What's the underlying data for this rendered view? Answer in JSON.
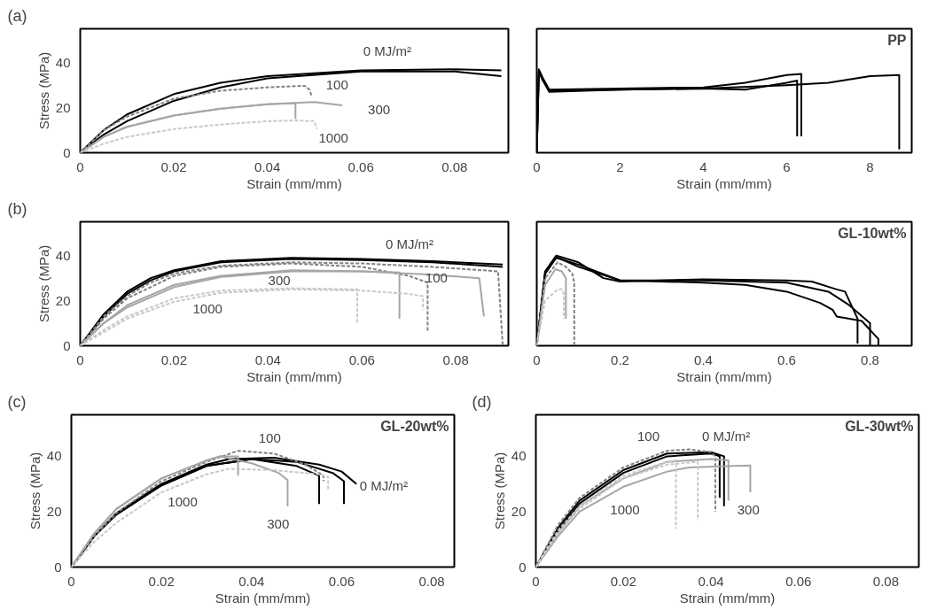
{
  "chart_data": [
    {
      "type": "line",
      "xlabel": "Strain (mm/mm)",
      "ylabel": "Stress (MPa)",
      "xlim": [
        0,
        0.0915
      ],
      "ylim": [
        0,
        55
      ],
      "xticks": [
        0,
        0.02,
        0.04,
        0.06,
        0.08
      ],
      "yticks": [
        0,
        20,
        40
      ],
      "grid": false,
      "marker": "none",
      "annotations": [
        "(a)",
        "0 MJ/m²",
        "100",
        "300",
        "1000"
      ],
      "series": [
        {
          "color": "#000000",
          "x": [
            0,
            0.005,
            0.01,
            0.02,
            0.03,
            0.04,
            0.06,
            0.08,
            0.09
          ],
          "values": [
            0,
            10,
            17,
            26,
            31,
            34,
            36.5,
            37,
            36.5
          ]
        },
        {
          "color": "#000000",
          "x": [
            0,
            0.005,
            0.01,
            0.02,
            0.03,
            0.04,
            0.06,
            0.08,
            0.09
          ],
          "values": [
            0,
            8,
            14,
            23,
            29,
            33,
            36,
            36,
            34
          ]
        },
        {
          "color": "#808080",
          "line_style": "dashed",
          "x": [
            0,
            0.005,
            0.01,
            0.02,
            0.03,
            0.04,
            0.048,
            0.049,
            0.0494
          ],
          "values": [
            0,
            10,
            16,
            24,
            27.5,
            29,
            29.7,
            28,
            25.5
          ]
        },
        {
          "color": "#a6a6a6",
          "x": [
            0,
            0.005,
            0.01,
            0.02,
            0.03,
            0.04,
            0.05,
            0.056
          ],
          "values": [
            0,
            7,
            11.5,
            16.5,
            19.5,
            21.5,
            22.5,
            21
          ]
        },
        {
          "color": "#a6a6a6",
          "x": [
            0,
            0.005,
            0.01,
            0.02,
            0.03,
            0.04,
            0.046,
            0.046
          ],
          "values": [
            0,
            7,
            11.5,
            16.5,
            19.5,
            21.5,
            22,
            15
          ]
        },
        {
          "color": "#c8c8c8",
          "line_style": "dashed",
          "x": [
            0,
            0.005,
            0.01,
            0.02,
            0.03,
            0.04,
            0.046,
            0.05,
            0.0506
          ],
          "values": [
            0,
            4,
            7,
            10.5,
            12.5,
            14,
            14.3,
            14,
            10.5
          ]
        }
      ]
    },
    {
      "type": "line",
      "title": "PP",
      "xlabel": "Strain (mm/mm)",
      "xlim": [
        0,
        9
      ],
      "ylim": [
        0,
        55
      ],
      "xticks": [
        0,
        2,
        4,
        6,
        8
      ],
      "tick_labels": "x",
      "grid": false,
      "marker": "none",
      "series": [
        {
          "color": "#000000",
          "x": [
            0,
            0.05,
            0.15,
            0.3,
            2,
            4,
            5,
            6,
            6.35,
            6.35
          ],
          "values": [
            0,
            37,
            33,
            28,
            28.5,
            29,
            31,
            34.5,
            35,
            7.3
          ]
        },
        {
          "color": "#000000",
          "x": [
            0,
            0.05,
            0.15,
            0.3,
            2,
            4,
            5,
            6,
            6.25,
            6.25
          ],
          "values": [
            0,
            36,
            32,
            27,
            28,
            28.5,
            28,
            31,
            32,
            7.3
          ]
        },
        {
          "color": "#000000",
          "x": [
            0,
            0.05,
            0.15,
            0.3,
            2,
            4,
            6,
            7,
            8,
            8.7,
            8.7
          ],
          "values": [
            0,
            36,
            32,
            27.5,
            28,
            28.5,
            30,
            31,
            34,
            34.5,
            1.5
          ]
        }
      ]
    },
    {
      "type": "line",
      "xlabel": "Strain (mm/mm)",
      "ylabel": "Stress (MPa)",
      "xlim": [
        0,
        0.0912
      ],
      "ylim": [
        0,
        55
      ],
      "xticks": [
        0,
        0.02,
        0.04,
        0.06,
        0.08
      ],
      "yticks": [
        0,
        20,
        40
      ],
      "grid": false,
      "marker": "none",
      "annotations": [
        "(b)",
        "0 MJ/m²",
        "300",
        "1000",
        "100"
      ],
      "series": [
        {
          "color": "#000000",
          "x": [
            0,
            0.005,
            0.01,
            0.015,
            0.02,
            0.03,
            0.045,
            0.06,
            0.075,
            0.09
          ],
          "values": [
            0,
            14,
            24,
            30,
            33.5,
            37.5,
            39,
            38.5,
            37.5,
            36
          ]
        },
        {
          "color": "#000000",
          "x": [
            0,
            0.005,
            0.01,
            0.015,
            0.02,
            0.03,
            0.045,
            0.06,
            0.075,
            0.09
          ],
          "values": [
            0,
            13,
            23,
            29,
            33,
            37,
            38.5,
            38,
            37,
            35
          ]
        },
        {
          "color": "#808080",
          "line_style": "dashed",
          "x": [
            0,
            0.005,
            0.01,
            0.015,
            0.02,
            0.03,
            0.045,
            0.06,
            0.075,
            0.089,
            0.09
          ],
          "values": [
            0,
            13,
            22,
            28,
            32,
            35.5,
            37,
            36.5,
            35,
            33,
            0
          ]
        },
        {
          "color": "#808080",
          "line_style": "dashed",
          "x": [
            0,
            0.005,
            0.01,
            0.02,
            0.03,
            0.045,
            0.06,
            0.07,
            0.074,
            0.074
          ],
          "values": [
            0,
            12,
            21,
            31,
            35,
            36.5,
            35,
            31,
            28,
            6
          ]
        },
        {
          "color": "#a6a6a6",
          "x": [
            0,
            0.005,
            0.01,
            0.02,
            0.03,
            0.045,
            0.06,
            0.068,
            0.068
          ],
          "values": [
            0,
            10,
            18,
            27,
            31,
            33.5,
            33,
            32.5,
            12
          ]
        },
        {
          "color": "#a6a6a6",
          "x": [
            0,
            0.005,
            0.01,
            0.02,
            0.03,
            0.045,
            0.06,
            0.075,
            0.085,
            0.086
          ],
          "values": [
            0,
            10,
            17,
            26,
            30.5,
            33,
            33,
            31.5,
            30,
            13
          ]
        },
        {
          "color": "#c8c8c8",
          "line_style": "dashed",
          "x": [
            0,
            0.005,
            0.01,
            0.02,
            0.03,
            0.045,
            0.059,
            0.059
          ],
          "values": [
            0,
            7,
            13,
            21,
            24.5,
            25.5,
            25,
            10
          ]
        },
        {
          "color": "#c8c8c8",
          "line_style": "dashed",
          "x": [
            0,
            0.005,
            0.01,
            0.02,
            0.03,
            0.045,
            0.06,
            0.07,
            0.073,
            0.073
          ],
          "values": [
            0,
            6,
            12,
            19.5,
            23.5,
            25,
            24.5,
            23,
            22,
            16
          ]
        }
      ]
    },
    {
      "type": "line",
      "title": "GL-10wt%",
      "xlabel": "Strain (mm/mm)",
      "xlim": [
        0,
        0.9
      ],
      "ylim": [
        0,
        55
      ],
      "xticks": [
        0,
        0.2,
        0.4,
        0.6,
        0.8
      ],
      "tick_labels": "x",
      "grid": false,
      "marker": "none",
      "series": [
        {
          "color": "#000000",
          "x": [
            0,
            0.02,
            0.047,
            0.1,
            0.16,
            0.2,
            0.4,
            0.6,
            0.66,
            0.72,
            0.74,
            0.77,
            0.77
          ],
          "values": [
            0,
            33,
            40,
            37,
            30,
            28.5,
            29.5,
            29,
            28.5,
            25,
            24,
            12,
            1
          ]
        },
        {
          "color": "#000000",
          "x": [
            0,
            0.02,
            0.045,
            0.1,
            0.2,
            0.4,
            0.6,
            0.7,
            0.75,
            0.8,
            0.8
          ],
          "values": [
            0,
            32,
            39.5,
            35,
            29,
            29,
            28,
            24,
            18,
            10,
            0
          ]
        },
        {
          "color": "#000000",
          "x": [
            0,
            0.02,
            0.047,
            0.1,
            0.2,
            0.4,
            0.5,
            0.6,
            0.68,
            0.71,
            0.72,
            0.78,
            0.82,
            0.82
          ],
          "values": [
            0,
            32,
            39,
            36,
            29,
            28,
            27,
            24,
            19,
            16,
            13,
            11,
            3,
            0
          ]
        },
        {
          "color": "#808080",
          "line_style": "dashed",
          "x": [
            0,
            0.02,
            0.05,
            0.07,
            0.085,
            0.09,
            0.09
          ],
          "values": [
            0,
            30,
            37,
            35,
            32,
            28,
            0
          ]
        },
        {
          "color": "#a6a6a6",
          "x": [
            0,
            0.02,
            0.045,
            0.06,
            0.07,
            0.07
          ],
          "values": [
            0,
            27,
            34,
            33,
            30,
            12
          ]
        },
        {
          "color": "#c8c8c8",
          "line_style": "dashed",
          "x": [
            0,
            0.02,
            0.05,
            0.06,
            0.065,
            0.065
          ],
          "values": [
            0,
            20,
            25,
            25,
            23,
            12
          ]
        }
      ]
    },
    {
      "type": "line",
      "title": "GL-20wt%",
      "xlabel": "Strain (mm/mm)",
      "ylabel": "Stress (MPa)",
      "xlim": [
        0,
        0.085
      ],
      "ylim": [
        0,
        55
      ],
      "xticks": [
        0,
        0.02,
        0.04,
        0.06,
        0.08
      ],
      "yticks": [
        0,
        20,
        40
      ],
      "grid": false,
      "marker": "none",
      "annotations": [
        "(c)",
        "100",
        "0 MJ/m²",
        "1000",
        "300"
      ],
      "series": [
        {
          "color": "#000000",
          "x": [
            0,
            0.005,
            0.01,
            0.02,
            0.03,
            0.035,
            0.045,
            0.055,
            0.06,
            0.0633
          ],
          "values": [
            0,
            11,
            19.5,
            30,
            37,
            39,
            39.5,
            37,
            34.5,
            30
          ]
        },
        {
          "color": "#000000",
          "x": [
            0,
            0.005,
            0.01,
            0.02,
            0.03,
            0.04,
            0.05,
            0.058,
            0.0605,
            0.0605
          ],
          "values": [
            0,
            11,
            19,
            29.5,
            36.5,
            39,
            38,
            34,
            31,
            22.8
          ]
        },
        {
          "color": "#000000",
          "x": [
            0,
            0.005,
            0.01,
            0.02,
            0.03,
            0.04,
            0.05,
            0.055,
            0.055
          ],
          "values": [
            0,
            11,
            19,
            29.5,
            36.5,
            39,
            36.5,
            33,
            22.8
          ]
        },
        {
          "color": "#808080",
          "line_style": "dashed",
          "x": [
            0,
            0.005,
            0.01,
            0.02,
            0.03,
            0.037,
            0.045,
            0.052,
            0.056,
            0.056
          ],
          "values": [
            0,
            11,
            19.5,
            31,
            38,
            42,
            41,
            37,
            33,
            31
          ]
        },
        {
          "color": "#a6a6a6",
          "x": [
            0,
            0.005,
            0.01,
            0.02,
            0.03,
            0.033,
            0.04,
            0.046,
            0.048,
            0.048
          ],
          "values": [
            0,
            12,
            21,
            32,
            38.5,
            40,
            37.5,
            34,
            31.4,
            22
          ]
        },
        {
          "color": "#a6a6a6",
          "x": [
            0,
            0.005,
            0.01,
            0.02,
            0.03,
            0.033,
            0.037,
            0.037
          ],
          "values": [
            0,
            12,
            21,
            32,
            38.5,
            40,
            40,
            33
          ]
        },
        {
          "color": "#c8c8c8",
          "line_style": "dashed",
          "x": [
            0,
            0.005,
            0.01,
            0.02,
            0.03,
            0.035,
            0.045,
            0.055,
            0.057,
            0.057
          ],
          "values": [
            0,
            9,
            16,
            27,
            33.5,
            35.5,
            35,
            33.5,
            32.5,
            27.5
          ]
        }
      ]
    },
    {
      "type": "line",
      "title": "GL-30wt%",
      "xlabel": "Strain (mm/mm)",
      "ylabel": "Stress (MPa)",
      "xlim": [
        0,
        0.0875
      ],
      "ylim": [
        0,
        55
      ],
      "xticks": [
        0,
        0.02,
        0.04,
        0.06,
        0.08
      ],
      "yticks": [
        0,
        20,
        40
      ],
      "grid": false,
      "marker": "none",
      "annotations": [
        "(d)",
        "100",
        "0 MJ/m²",
        "1000",
        "300"
      ],
      "series": [
        {
          "color": "#000000",
          "x": [
            0,
            0.005,
            0.01,
            0.02,
            0.03,
            0.04,
            0.043,
            0.043
          ],
          "values": [
            0,
            14,
            24,
            35,
            41,
            41.5,
            40,
            22
          ]
        },
        {
          "color": "#000000",
          "x": [
            0,
            0.005,
            0.01,
            0.02,
            0.03,
            0.04,
            0.042,
            0.042
          ],
          "values": [
            0,
            13,
            23,
            34,
            40,
            41,
            40,
            25
          ]
        },
        {
          "color": "#808080",
          "line_style": "dashed",
          "x": [
            0,
            0.005,
            0.01,
            0.02,
            0.03,
            0.035,
            0.04,
            0.041,
            0.041
          ],
          "values": [
            0,
            15,
            25,
            36,
            42,
            42.5,
            41.5,
            40,
            20
          ]
        },
        {
          "color": "#a6a6a6",
          "x": [
            0,
            0.005,
            0.01,
            0.02,
            0.03,
            0.035,
            0.045,
            0.049,
            0.049
          ],
          "values": [
            0,
            11,
            20,
            29,
            34.5,
            36,
            36.5,
            36.7,
            27
          ]
        },
        {
          "color": "#a6a6a6",
          "x": [
            0,
            0.005,
            0.01,
            0.02,
            0.03,
            0.04,
            0.044,
            0.044
          ],
          "values": [
            0,
            12,
            22,
            32,
            38,
            39,
            38.5,
            24
          ]
        },
        {
          "color": "#c8c8c8",
          "line_style": "dashed",
          "x": [
            0,
            0.005,
            0.01,
            0.02,
            0.03,
            0.032,
            0.032
          ],
          "values": [
            0,
            13,
            22,
            33,
            38,
            38.5,
            13.8
          ]
        },
        {
          "color": "#c8c8c8",
          "line_style": "dashed",
          "x": [
            0,
            0.005,
            0.01,
            0.02,
            0.03,
            0.037,
            0.037
          ],
          "values": [
            0,
            12,
            21,
            32,
            37,
            38,
            17
          ]
        }
      ]
    }
  ]
}
